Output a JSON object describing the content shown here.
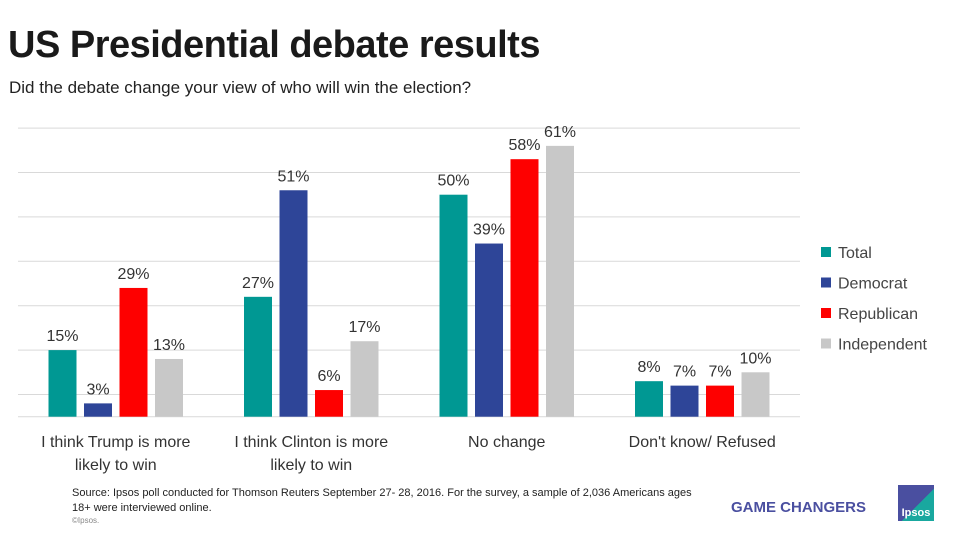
{
  "title": "US Presidential debate results",
  "subtitle": "Did the debate change your view of who will win the election?",
  "source": "Source: Ipsos poll conducted for Thomson Reuters September 27- 28, 2016. For the survey, a sample of 2,036 Americans ages 18+ were interviewed online.",
  "copyright": "©Ipsos.",
  "brand": "GAME CHANGERS",
  "logo": "Ipsos",
  "chart_data": {
    "type": "bar",
    "categories": [
      [
        "I think Trump is more",
        "likely to win"
      ],
      [
        "I think Clinton is more",
        "likely to win"
      ],
      [
        "No change"
      ],
      [
        "Don't know/ Refused"
      ]
    ],
    "series": [
      {
        "name": "Total",
        "color": "#009893",
        "values": [
          15,
          27,
          50,
          8
        ]
      },
      {
        "name": "Democrat",
        "color": "#2e4598",
        "values": [
          3,
          51,
          39,
          7
        ]
      },
      {
        "name": "Republican",
        "color": "#fe0000",
        "values": [
          29,
          6,
          58,
          7
        ]
      },
      {
        "name": "Independent",
        "color": "#c8c8c8",
        "values": [
          13,
          17,
          61,
          10
        ]
      }
    ],
    "data_label_format": "{v}%",
    "ylim": [
      0,
      65
    ],
    "gridlines": [
      5,
      15,
      25,
      35,
      45,
      55,
      65
    ],
    "grid": true,
    "legend": "right"
  }
}
